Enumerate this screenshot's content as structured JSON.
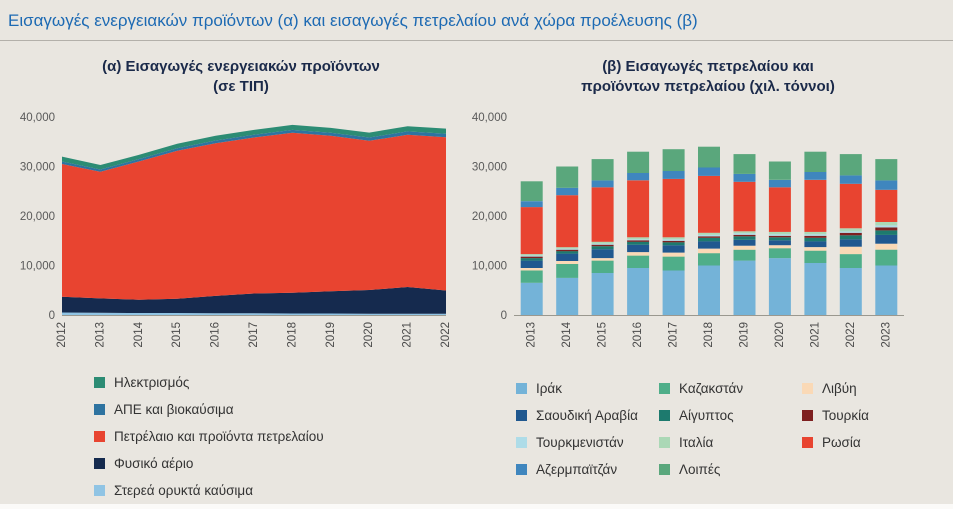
{
  "header": {
    "title": "Εισαγωγές ενεργειακών προϊόντων (α) και εισαγωγές πετρελαίου ανά χώρα προέλευσης (β)"
  },
  "chart_data": [
    {
      "type": "area",
      "title": "(α) Εισαγωγές ενεργειακών προϊόντων (σε ΤΙΠ)",
      "title_lines": [
        "(α) Εισαγωγές ενεργειακών προϊόντων",
        "(σε ΤΙΠ)"
      ],
      "x": [
        "2012",
        "2013",
        "2014",
        "2015",
        "2016",
        "2017",
        "2018",
        "2019",
        "2020",
        "2021",
        "2022"
      ],
      "ylim": [
        0,
        40000
      ],
      "yticks": [
        0,
        10000,
        20000,
        30000,
        40000
      ],
      "grid": false,
      "legend_position": "bottom-left",
      "legend_columns": 1,
      "stack_from": "last",
      "series": [
        {
          "name": "Ηλεκτρισμός",
          "color": "#2c8c74",
          "values": [
            1000,
            900,
            850,
            900,
            950,
            1000,
            1000,
            1000,
            1000,
            1050,
            1050
          ]
        },
        {
          "name": "ΑΠΕ και βιοκαύσιμα",
          "color": "#2e73a0",
          "values": [
            500,
            450,
            500,
            500,
            550,
            550,
            600,
            600,
            650,
            700,
            700
          ]
        },
        {
          "name": "Πετρέλαιο και προϊόντα πετρελαίου",
          "color": "#e84430",
          "values": [
            26800,
            25600,
            27900,
            29900,
            30850,
            31500,
            32300,
            31400,
            30150,
            30750,
            30950
          ]
        },
        {
          "name": "Φυσικό αέριο",
          "color": "#152a4e",
          "values": [
            3200,
            2900,
            2700,
            2900,
            3500,
            4000,
            4200,
            4500,
            4800,
            5400,
            4700
          ]
        },
        {
          "name": "Στερεά ορυκτά καύσιμα",
          "color": "#90c4e4",
          "values": [
            500,
            450,
            400,
            400,
            350,
            350,
            300,
            300,
            250,
            250,
            250
          ]
        }
      ]
    },
    {
      "type": "bar",
      "title": "(β) Εισαγωγές πετρελαίου και προϊόντων πετρελαίου (χιλ. τόννοι)",
      "title_lines": [
        "(β) Εισαγωγές πετρελαίου και",
        "προϊόντων πετρελαίου (χιλ. τόννοι)"
      ],
      "x": [
        "2013",
        "2014",
        "2015",
        "2016",
        "2017",
        "2018",
        "2019",
        "2020",
        "2021",
        "2022",
        "2023"
      ],
      "ylim": [
        0,
        40000
      ],
      "yticks": [
        0,
        10000,
        20000,
        30000,
        40000
      ],
      "grid": false,
      "legend_position": "bottom",
      "legend_columns": 3,
      "stack_from": "first",
      "series": [
        {
          "name": "Ιράκ",
          "color": "#74b3d8",
          "values": [
            6500,
            7500,
            8500,
            9500,
            9000,
            10000,
            11000,
            11500,
            10500,
            9500,
            10000
          ]
        },
        {
          "name": "Καζακστάν",
          "color": "#4fae89",
          "values": [
            2500,
            2800,
            2500,
            2500,
            2800,
            2500,
            2200,
            2000,
            2500,
            2800,
            3200
          ]
        },
        {
          "name": "Λιβύη",
          "color": "#fad9b6",
          "values": [
            500,
            600,
            500,
            700,
            800,
            900,
            800,
            600,
            700,
            1500,
            1200
          ]
        },
        {
          "name": "Σαουδική Αραβία",
          "color": "#20588f",
          "values": [
            1500,
            1500,
            1800,
            1500,
            1500,
            1500,
            1200,
            1000,
            1200,
            1500,
            1800
          ]
        },
        {
          "name": "Αίγυπτος",
          "color": "#1d7a6e",
          "values": [
            500,
            500,
            600,
            600,
            600,
            700,
            700,
            600,
            700,
            800,
            900
          ]
        },
        {
          "name": "Τουρκία",
          "color": "#7e2020",
          "values": [
            300,
            300,
            300,
            300,
            300,
            300,
            300,
            300,
            400,
            500,
            600
          ]
        },
        {
          "name": "Τουρκμενιστάν",
          "color": "#aedce8",
          "values": [
            200,
            200,
            200,
            200,
            300,
            300,
            300,
            300,
            300,
            300,
            400
          ]
        },
        {
          "name": "Ιταλία",
          "color": "#abd8b6",
          "values": [
            300,
            300,
            400,
            400,
            400,
            400,
            400,
            500,
            500,
            600,
            700
          ]
        },
        {
          "name": "Ρωσία",
          "color": "#e84430",
          "values": [
            9500,
            10500,
            11000,
            11500,
            11800,
            11500,
            10000,
            9000,
            10500,
            9000,
            6500
          ]
        },
        {
          "name": "Αζερμπαϊτζάν",
          "color": "#3f86be",
          "values": [
            1200,
            1500,
            1400,
            1500,
            1600,
            1700,
            1600,
            1500,
            1600,
            1700,
            1900
          ]
        },
        {
          "name": "Λοιπές",
          "color": "#5aa77c",
          "values": [
            4000,
            4300,
            4300,
            4300,
            4400,
            4200,
            4000,
            3700,
            4100,
            4300,
            4300
          ]
        }
      ]
    }
  ]
}
